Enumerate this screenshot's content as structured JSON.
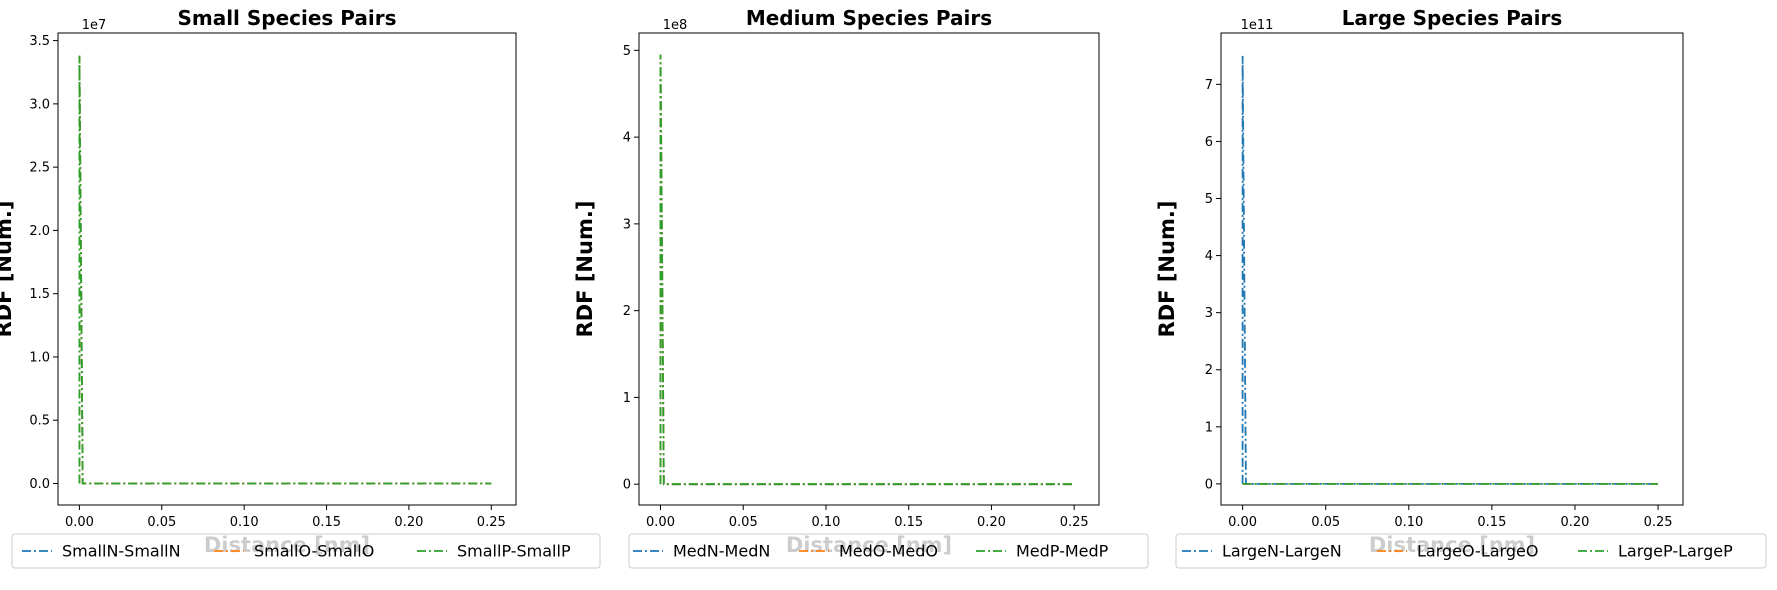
{
  "chart_data": [
    {
      "type": "line",
      "title": "Small Species Pairs",
      "xlabel": "Distance [nm]",
      "ylabel": "RDF [Num.]",
      "xlim": [
        -0.013,
        0.265
      ],
      "ylim": [
        -1.7,
        35.6
      ],
      "y_scale_offset": "1e7",
      "x_ticks": [
        0.0,
        0.05,
        0.1,
        0.15,
        0.2,
        0.25
      ],
      "x_tick_labels": [
        "0.00",
        "0.05",
        "0.10",
        "0.15",
        "0.20",
        "0.25"
      ],
      "y_ticks": [
        0.0,
        5.0,
        10.0,
        15.0,
        20.0,
        25.0,
        30.0,
        35.0
      ],
      "y_tick_labels": [
        "0.0",
        "0.5",
        "1.0",
        "1.5",
        "2.0",
        "2.5",
        "3.0",
        "3.5"
      ],
      "grid": false,
      "legend_placement": "bottom",
      "series": [
        {
          "name": "SmallN-SmallN",
          "color": "#1f77b4",
          "linestyle": "dashdot",
          "x": [
            0.0,
            0.0,
            0.002,
            0.05,
            0.1,
            0.15,
            0.2,
            0.25
          ],
          "y": [
            0.0,
            33.8,
            0.0,
            0.0,
            0.0,
            0.0,
            0.0,
            0.0
          ]
        },
        {
          "name": "SmallO-SmallO",
          "color": "#ff7f0e",
          "linestyle": "dashdot",
          "x": [
            0.0,
            0.0,
            0.002,
            0.05,
            0.1,
            0.15,
            0.2,
            0.25
          ],
          "y": [
            0.0,
            33.8,
            0.0,
            0.0,
            0.0,
            0.0,
            0.0,
            0.0
          ]
        },
        {
          "name": "SmallP-SmallP",
          "color": "#2ca02c",
          "linestyle": "dashdot",
          "x": [
            0.0,
            0.0,
            0.002,
            0.05,
            0.1,
            0.15,
            0.2,
            0.25
          ],
          "y": [
            0.0,
            33.8,
            0.0,
            0.0,
            0.0,
            0.0,
            0.0,
            0.0
          ]
        }
      ]
    },
    {
      "type": "line",
      "title": "Medium Species Pairs",
      "xlabel": "Distance [nm]",
      "ylabel": "RDF [Num.]",
      "xlim": [
        -0.013,
        0.265
      ],
      "ylim": [
        -0.24,
        5.2
      ],
      "y_scale_offset": "1e8",
      "x_ticks": [
        0.0,
        0.05,
        0.1,
        0.15,
        0.2,
        0.25
      ],
      "x_tick_labels": [
        "0.00",
        "0.05",
        "0.10",
        "0.15",
        "0.20",
        "0.25"
      ],
      "y_ticks": [
        0,
        1,
        2,
        3,
        4,
        5
      ],
      "y_tick_labels": [
        "0",
        "1",
        "2",
        "3",
        "4",
        "5"
      ],
      "grid": false,
      "legend_placement": "bottom",
      "series": [
        {
          "name": "MedN-MedN",
          "color": "#1f77b4",
          "linestyle": "dashdot",
          "x": [
            0.0,
            0.0,
            0.002,
            0.05,
            0.1,
            0.15,
            0.2,
            0.25
          ],
          "y": [
            0.0,
            4.95,
            0.0,
            0.0,
            0.0,
            0.0,
            0.0,
            0.0
          ]
        },
        {
          "name": "MedO-MedO",
          "color": "#ff7f0e",
          "linestyle": "dashdot",
          "x": [
            0.0,
            0.0,
            0.002,
            0.05,
            0.1,
            0.15,
            0.2,
            0.25
          ],
          "y": [
            0.0,
            4.95,
            0.0,
            0.0,
            0.0,
            0.0,
            0.0,
            0.0
          ]
        },
        {
          "name": "MedP-MedP",
          "color": "#2ca02c",
          "linestyle": "dashdot",
          "x": [
            0.0,
            0.0,
            0.002,
            0.05,
            0.1,
            0.15,
            0.2,
            0.25
          ],
          "y": [
            0.0,
            4.95,
            0.0,
            0.0,
            0.0,
            0.0,
            0.0,
            0.0
          ]
        }
      ]
    },
    {
      "type": "line",
      "title": "Large Species Pairs",
      "xlabel": "Distance [nm]",
      "ylabel": "RDF [Num.]",
      "xlim": [
        -0.013,
        0.265
      ],
      "ylim": [
        -0.37,
        7.9
      ],
      "y_scale_offset": "1e11",
      "x_ticks": [
        0.0,
        0.05,
        0.1,
        0.15,
        0.2,
        0.25
      ],
      "x_tick_labels": [
        "0.00",
        "0.05",
        "0.10",
        "0.15",
        "0.20",
        "0.25"
      ],
      "y_ticks": [
        0,
        1,
        2,
        3,
        4,
        5,
        6,
        7
      ],
      "y_tick_labels": [
        "0",
        "1",
        "2",
        "3",
        "4",
        "5",
        "6",
        "7"
      ],
      "grid": false,
      "legend_placement": "bottom",
      "series": [
        {
          "name": "LargeN-LargeN",
          "color": "#1f77b4",
          "linestyle": "dashdot",
          "x": [
            0.0,
            0.0,
            0.002,
            0.05,
            0.1,
            0.15,
            0.2,
            0.25
          ],
          "y": [
            0.0,
            7.5,
            0.0,
            0.0,
            0.0,
            0.0,
            0.0,
            0.0
          ]
        },
        {
          "name": "LargeO-LargeO",
          "color": "#ff7f0e",
          "linestyle": "dashdot",
          "x": [
            0.0,
            0.0,
            0.002,
            0.05,
            0.1,
            0.15,
            0.2,
            0.25
          ],
          "y": [
            0.0,
            0.0,
            0.0,
            0.0,
            0.0,
            0.0,
            0.0,
            0.0
          ]
        },
        {
          "name": "LargeP-LargeP",
          "color": "#2ca02c",
          "linestyle": "dashdot",
          "x": [
            0.0,
            0.0,
            0.002,
            0.05,
            0.1,
            0.15,
            0.2,
            0.25
          ],
          "y": [
            0.0,
            0.0,
            0.0,
            0.0,
            0.0,
            0.0,
            0.0,
            0.0
          ]
        }
      ]
    }
  ]
}
